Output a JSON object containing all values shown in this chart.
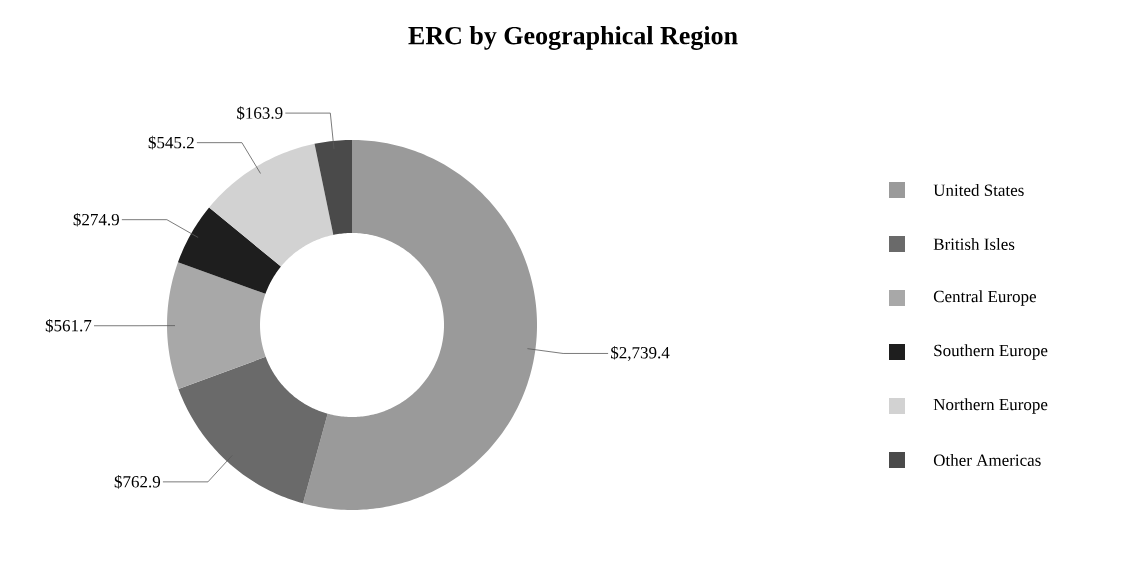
{
  "chart_data": {
    "type": "donut",
    "title": "ERC by Geographical Region",
    "categories": [
      "United States",
      "British Isles",
      "Central Europe",
      "Southern Europe",
      "Northern Europe",
      "Other Americas"
    ],
    "values": [
      2739.4,
      762.9,
      561.7,
      274.9,
      545.2,
      163.9
    ],
    "value_labels": [
      "$2,739.4",
      "$762.9",
      "$561.7",
      "$274.9",
      "$545.2",
      "$163.9"
    ],
    "colors": [
      "#9a9a9a",
      "#6a6a6a",
      "#a8a8a8",
      "#1e1e1e",
      "#d2d2d2",
      "#4a4a4a"
    ],
    "legend": "right"
  }
}
